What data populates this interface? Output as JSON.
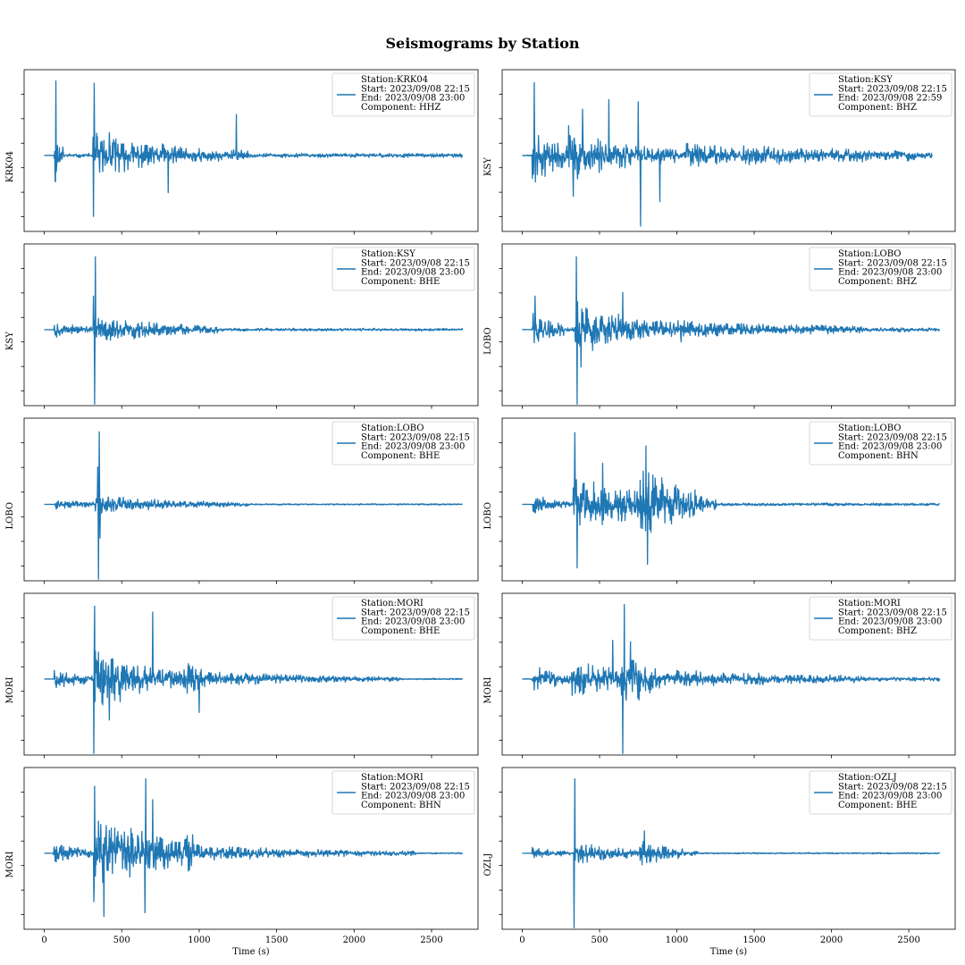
{
  "title": "Seismograms by Station",
  "colors": {
    "trace": "#1f77b4",
    "frame": "#000000",
    "legend_border": "#cccccc"
  },
  "chart_data": {
    "type": "line",
    "title": "Seismograms by Station",
    "xlabel": "Time (s)",
    "xlim": [
      -130,
      2800
    ],
    "xticks": [
      0,
      500,
      1000,
      1500,
      2000,
      2500
    ],
    "ylabel_source": "station code",
    "yticks_labelled": false,
    "grid": false,
    "legend_placement": "upper right",
    "sharex": true,
    "layout": "5 rows x 2 columns",
    "panels": [
      {
        "station": "KRK04",
        "ylabel": "KRK04",
        "legend": [
          "Station:KRK04",
          "Start: 2023/09/08 22:15",
          "End: 2023/09/08 23:00",
          "Component: HHZ"
        ],
        "t_end": 2700,
        "noise": 0.03,
        "baseline": 0.03,
        "arrivals": [
          {
            "t": 65,
            "a": 0.45,
            "d": 35,
            "dur": 60
          },
          {
            "t": 315,
            "a": 0.42,
            "d": 120,
            "dur": 150
          },
          {
            "t": 420,
            "a": 0.25,
            "d": 500,
            "dur": 900
          }
        ],
        "spikes": [
          {
            "t": 75,
            "v": 1.0
          },
          {
            "t": 73,
            "v": -0.35
          },
          {
            "t": 322,
            "v": 0.97
          },
          {
            "t": 318,
            "v": -0.82
          },
          {
            "t": 1240,
            "v": 0.55
          },
          {
            "t": 800,
            "v": -0.5
          }
        ],
        "seed": 11
      },
      {
        "station": "KSY",
        "ylabel": "KSY",
        "legend": [
          "Station:KSY",
          "Start: 2023/09/08 22:15",
          "End: 2023/09/08 22:59",
          "Component: BHZ"
        ],
        "t_end": 2650,
        "noise": 0.05,
        "baseline": 0.05,
        "arrivals": [
          {
            "t": 65,
            "a": 0.35,
            "d": 200,
            "dur": 250
          },
          {
            "t": 300,
            "a": 0.38,
            "d": 350,
            "dur": 700
          },
          {
            "t": 1050,
            "a": 0.14,
            "d": 900,
            "dur": 1500
          }
        ],
        "spikes": [
          {
            "t": 78,
            "v": 0.98
          },
          {
            "t": 330,
            "v": -0.55
          },
          {
            "t": 390,
            "v": 0.62
          },
          {
            "t": 750,
            "v": 0.72
          },
          {
            "t": 765,
            "v": -0.95
          },
          {
            "t": 560,
            "v": 0.75
          },
          {
            "t": 890,
            "v": -0.62
          }
        ],
        "seed": 23
      },
      {
        "station": "KSY",
        "ylabel": "KSY",
        "legend": [
          "Station:KSY",
          "Start: 2023/09/08 22:15",
          "End: 2023/09/08 23:00",
          "Component: BHE"
        ],
        "t_end": 2700,
        "noise": 0.02,
        "baseline": 0.02,
        "arrivals": [
          {
            "t": 65,
            "a": 0.1,
            "d": 200,
            "dur": 250
          },
          {
            "t": 320,
            "a": 0.2,
            "d": 450,
            "dur": 800
          }
        ],
        "spikes": [
          {
            "t": 330,
            "v": 0.98
          },
          {
            "t": 325,
            "v": -1.0
          },
          {
            "t": 318,
            "v": 0.45
          },
          {
            "t": 80,
            "v": -0.1
          }
        ],
        "seed": 37
      },
      {
        "station": "LOBO",
        "ylabel": "LOBO",
        "legend": [
          "Station:LOBO",
          "Start: 2023/09/08 22:15",
          "End: 2023/09/08 23:00",
          "Component: BHZ"
        ],
        "t_end": 2700,
        "noise": 0.03,
        "baseline": 0.03,
        "arrivals": [
          {
            "t": 70,
            "a": 0.22,
            "d": 150,
            "dur": 200
          },
          {
            "t": 340,
            "a": 0.38,
            "d": 400,
            "dur": 700
          },
          {
            "t": 1000,
            "a": 0.1,
            "d": 800,
            "dur": 1200
          }
        ],
        "spikes": [
          {
            "t": 350,
            "v": 0.98
          },
          {
            "t": 355,
            "v": -1.0
          },
          {
            "t": 82,
            "v": 0.45
          },
          {
            "t": 380,
            "v": -0.5
          },
          {
            "t": 650,
            "v": 0.5
          }
        ],
        "seed": 41
      },
      {
        "station": "LOBO",
        "ylabel": "LOBO",
        "legend": [
          "Station:LOBO",
          "Start: 2023/09/08 22:15",
          "End: 2023/09/08 23:00",
          "Component: BHE"
        ],
        "t_end": 2700,
        "noise": 0.01,
        "baseline": 0.01,
        "arrivals": [
          {
            "t": 70,
            "a": 0.08,
            "d": 200,
            "dur": 250
          },
          {
            "t": 330,
            "a": 0.15,
            "d": 500,
            "dur": 1000
          }
        ],
        "spikes": [
          {
            "t": 355,
            "v": 0.97
          },
          {
            "t": 350,
            "v": -1.0
          },
          {
            "t": 345,
            "v": 0.5
          },
          {
            "t": 360,
            "v": -0.45
          }
        ],
        "seed": 53
      },
      {
        "station": "LOBO",
        "ylabel": "LOBO",
        "legend": [
          "Station:LOBO",
          "Start: 2023/09/08 22:15",
          "End: 2023/09/08 23:00",
          "Component: BHN"
        ],
        "t_end": 2700,
        "noise": 0.02,
        "baseline": 0.02,
        "arrivals": [
          {
            "t": 70,
            "a": 0.12,
            "d": 200,
            "dur": 250
          },
          {
            "t": 330,
            "a": 0.42,
            "d": 500,
            "dur": 800
          },
          {
            "t": 760,
            "a": 0.35,
            "d": 300,
            "dur": 500
          }
        ],
        "spikes": [
          {
            "t": 340,
            "v": 0.96
          },
          {
            "t": 355,
            "v": -0.85
          },
          {
            "t": 800,
            "v": 0.78
          },
          {
            "t": 810,
            "v": -0.8
          },
          {
            "t": 520,
            "v": 0.55
          }
        ],
        "seed": 67
      },
      {
        "station": "MORI",
        "ylabel": "MORI",
        "legend": [
          "Station:MORI",
          "Start: 2023/09/08 22:15",
          "End: 2023/09/08 23:00",
          "Component: BHE"
        ],
        "t_end": 2700,
        "noise": 0.01,
        "baseline": 0.01,
        "arrivals": [
          {
            "t": 65,
            "a": 0.15,
            "d": 200,
            "dur": 250
          },
          {
            "t": 320,
            "a": 0.48,
            "d": 400,
            "dur": 700
          },
          {
            "t": 900,
            "a": 0.12,
            "d": 800,
            "dur": 1400
          }
        ],
        "spikes": [
          {
            "t": 325,
            "v": 0.98
          },
          {
            "t": 320,
            "v": -1.0
          },
          {
            "t": 700,
            "v": 0.9
          },
          {
            "t": 420,
            "v": -0.55
          },
          {
            "t": 1000,
            "v": -0.45
          }
        ],
        "seed": 79
      },
      {
        "station": "MORI",
        "ylabel": "MORI",
        "legend": [
          "Station:MORI",
          "Start: 2023/09/08 22:15",
          "End: 2023/09/08 23:00",
          "Component: BHZ"
        ],
        "t_end": 2700,
        "noise": 0.03,
        "baseline": 0.03,
        "arrivals": [
          {
            "t": 70,
            "a": 0.18,
            "d": 200,
            "dur": 250
          },
          {
            "t": 320,
            "a": 0.25,
            "d": 400,
            "dur": 700
          },
          {
            "t": 640,
            "a": 0.4,
            "d": 150,
            "dur": 250
          },
          {
            "t": 1000,
            "a": 0.1,
            "d": 800,
            "dur": 1200
          }
        ],
        "spikes": [
          {
            "t": 660,
            "v": 1.0
          },
          {
            "t": 650,
            "v": -1.0
          },
          {
            "t": 585,
            "v": 0.52
          },
          {
            "t": 700,
            "v": 0.5
          }
        ],
        "seed": 83
      },
      {
        "station": "MORI",
        "ylabel": "MORI",
        "legend": [
          "Station:MORI",
          "Start: 2023/09/08 22:15",
          "End: 2023/09/08 23:00",
          "Component: BHN"
        ],
        "t_end": 2700,
        "noise": 0.01,
        "baseline": 0.01,
        "arrivals": [
          {
            "t": 60,
            "a": 0.15,
            "d": 200,
            "dur": 250
          },
          {
            "t": 320,
            "a": 0.55,
            "d": 500,
            "dur": 650
          },
          {
            "t": 900,
            "a": 0.12,
            "d": 900,
            "dur": 1500
          }
        ],
        "spikes": [
          {
            "t": 325,
            "v": 0.9
          },
          {
            "t": 320,
            "v": -0.65
          },
          {
            "t": 655,
            "v": 1.0
          },
          {
            "t": 385,
            "v": -0.85
          },
          {
            "t": 650,
            "v": -0.8
          },
          {
            "t": 700,
            "v": 0.72
          }
        ],
        "seed": 97
      },
      {
        "station": "OZLJ",
        "ylabel": "OZLJ",
        "legend": [
          "Station:OZLJ",
          "Start: 2023/09/08 22:15",
          "End: 2023/09/08 23:00",
          "Component: BHE"
        ],
        "t_end": 2700,
        "noise": 0.01,
        "baseline": 0.01,
        "arrivals": [
          {
            "t": 65,
            "a": 0.08,
            "d": 200,
            "dur": 250
          },
          {
            "t": 340,
            "a": 0.15,
            "d": 400,
            "dur": 800
          },
          {
            "t": 760,
            "a": 0.15,
            "d": 200,
            "dur": 300
          }
        ],
        "spikes": [
          {
            "t": 340,
            "v": 1.0
          },
          {
            "t": 335,
            "v": -1.0
          },
          {
            "t": 790,
            "v": 0.3
          }
        ],
        "seed": 101
      }
    ]
  }
}
